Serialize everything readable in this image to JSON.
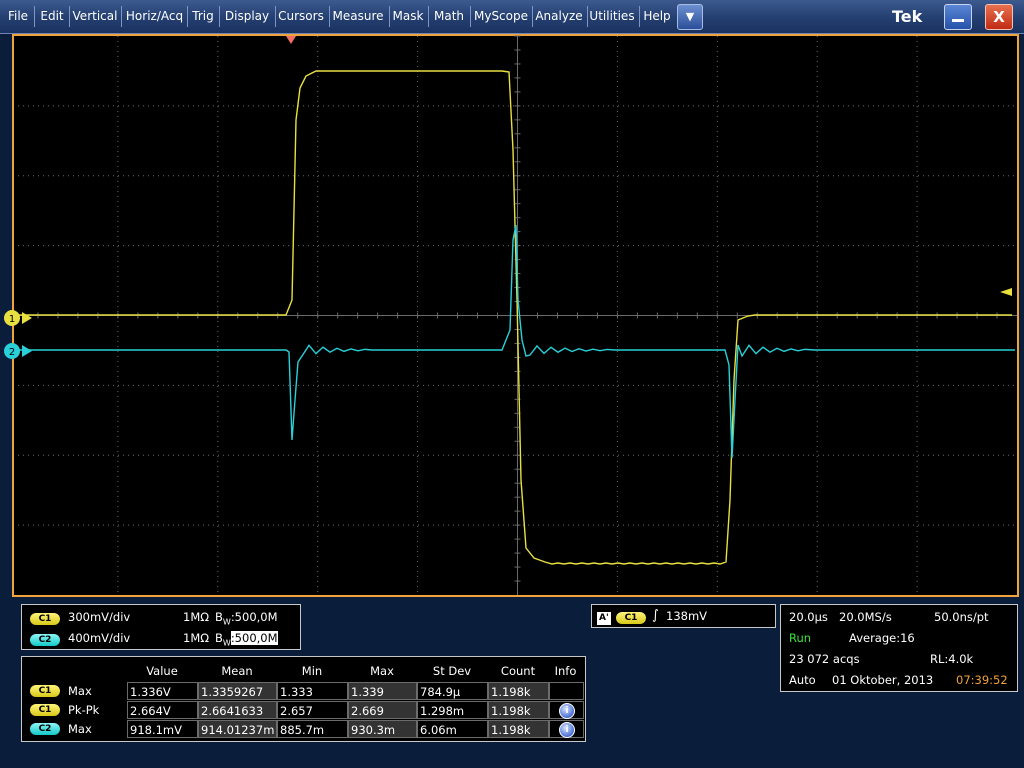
{
  "menu": {
    "items": [
      "File",
      "Edit",
      "Vertical",
      "Horiz/Acq",
      "Trig",
      "Display",
      "Cursors",
      "Measure",
      "Mask",
      "Math",
      "MyScope",
      "Analyze",
      "Utilities",
      "Help"
    ],
    "brand": "Tek",
    "close_label": "X",
    "dropdown_label": "▼"
  },
  "screen": {
    "ch1_marker": "1",
    "ch2_marker": "2",
    "colors": {
      "ch1": "#e8e040",
      "ch2": "#29d0d8",
      "frame": "#f0a23c",
      "grid": "#6a6a6a"
    }
  },
  "channels": [
    {
      "badge": "C1",
      "scale": "300mV/div",
      "impedance": "1MΩ",
      "bw_prefix": "B",
      "bw_sub": "W",
      "bw_value": ":500,0M"
    },
    {
      "badge": "C2",
      "scale": "400mV/div",
      "impedance": "1MΩ",
      "bw_prefix": "B",
      "bw_sub": "W",
      "bw_value": ":500,0M"
    }
  ],
  "trigger": {
    "mode": "A'",
    "source": "C1",
    "level": "138mV"
  },
  "acquisition": {
    "time_div": "20.0µs",
    "sample_rate": "20.0MS/s",
    "resolution": "50.0ns/pt",
    "state": "Run",
    "average": "Average:16",
    "acqs": "23 072 acqs",
    "record_length": "RL:4.0k",
    "mode": "Auto",
    "date": "01 Oktober, 2013",
    "time": "07:39:52"
  },
  "measurements": {
    "headers": [
      "Value",
      "Mean",
      "Min",
      "Max",
      "St Dev",
      "Count",
      "Info"
    ],
    "rows": [
      {
        "badge": "C1",
        "name": "Max",
        "value": "1.336V",
        "mean": "1.3359267",
        "min": "1.333",
        "max": "1.339",
        "stdev": "784.9µ",
        "count": "1.198k",
        "info": false
      },
      {
        "badge": "C1",
        "name": "Pk-Pk",
        "value": "2.664V",
        "mean": "2.6641633",
        "min": "2.657",
        "max": "2.669",
        "stdev": "1.298m",
        "count": "1.198k",
        "info": true
      },
      {
        "badge": "C2",
        "name": "Max",
        "value": "918.1mV",
        "mean": "914.01237m",
        "min": "885.7m",
        "max": "930.3m",
        "stdev": "6.06m",
        "count": "1.198k",
        "info": true
      }
    ]
  }
}
